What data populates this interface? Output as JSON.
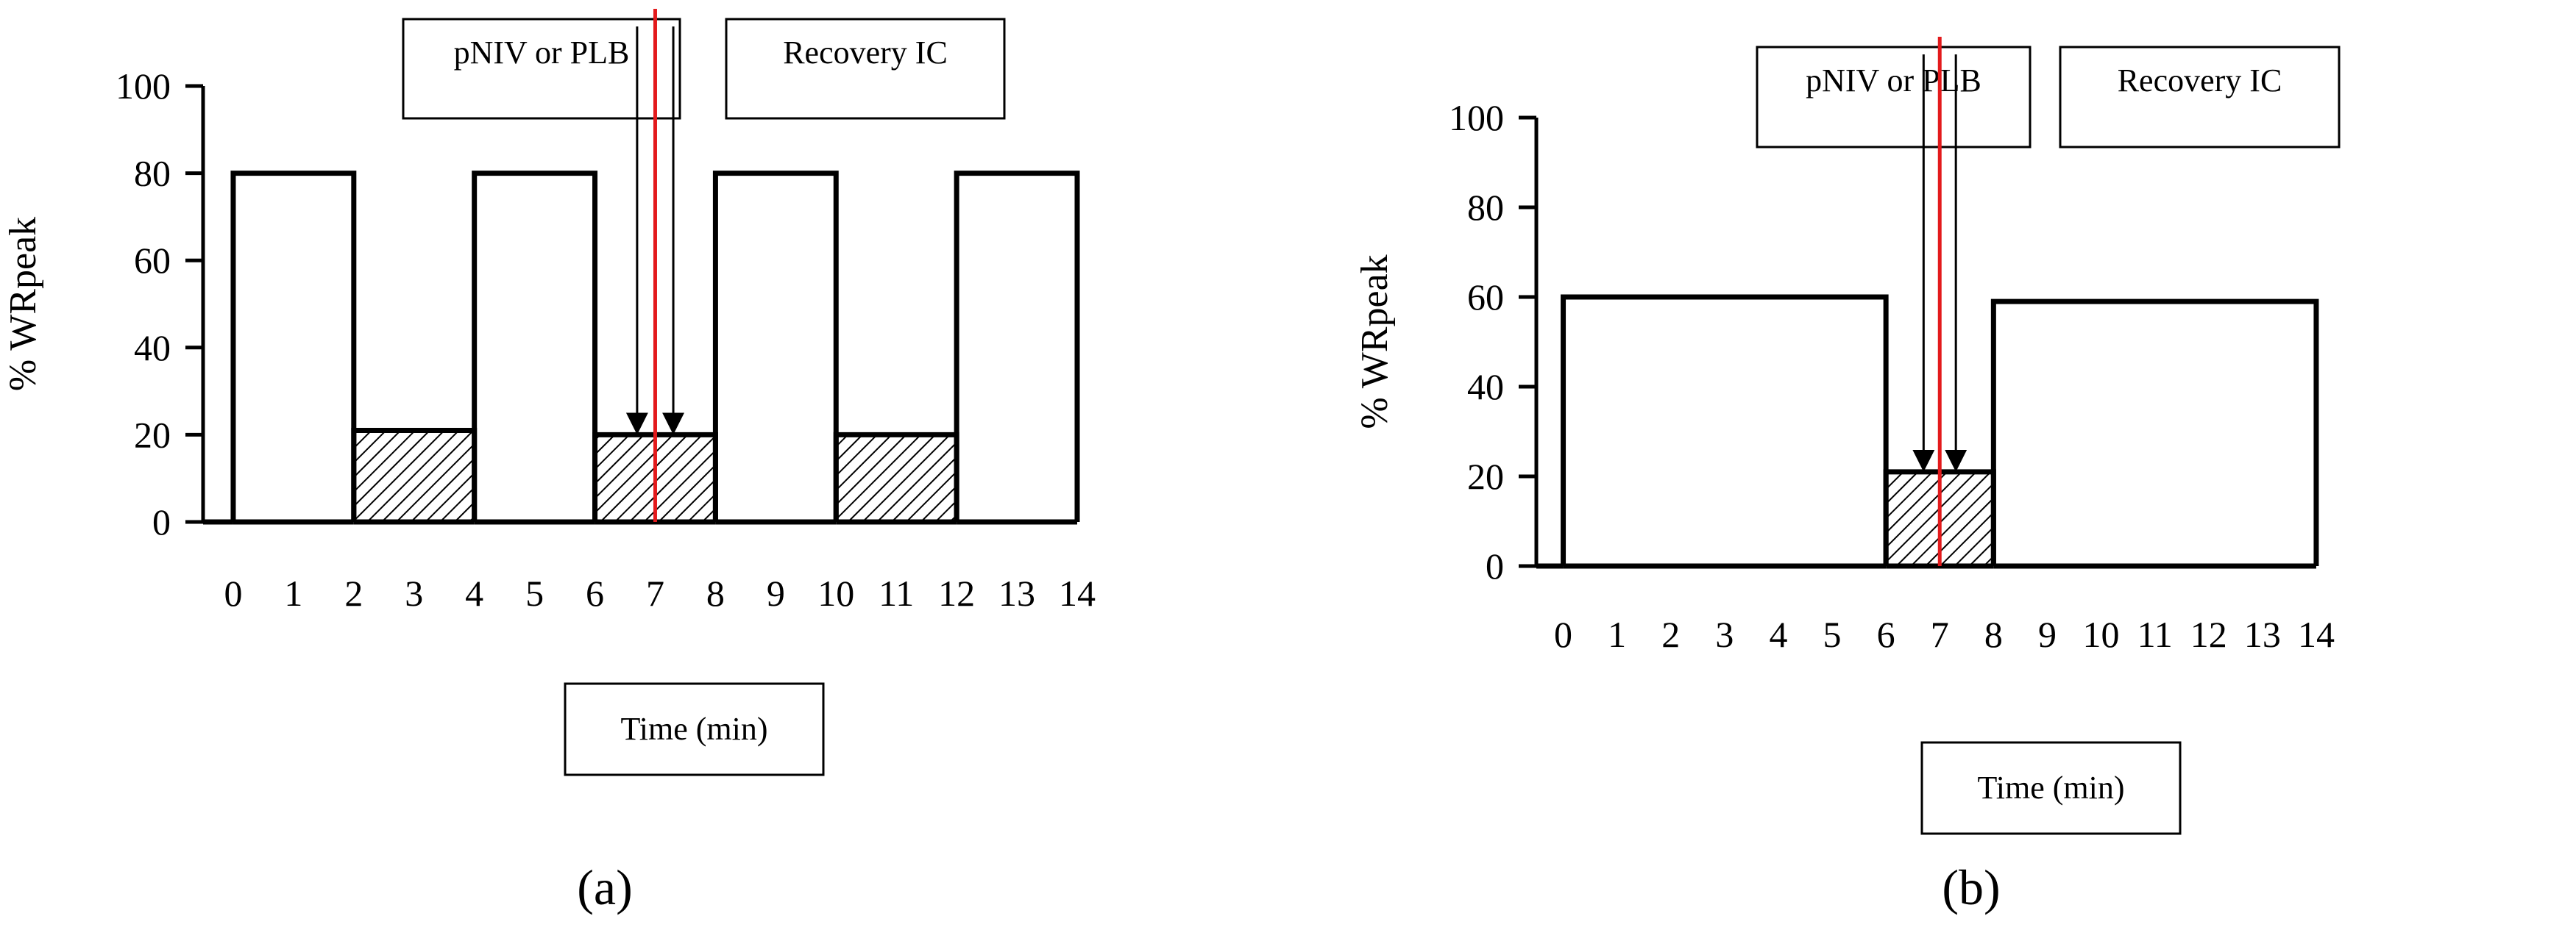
{
  "colors": {
    "profile": "#000000",
    "marker": "#e31a1c",
    "hatch_fill": "#ffffff",
    "hatch_line": "#000000"
  },
  "chart_data": [
    {
      "type": "line",
      "panel_label": "(a)",
      "ylabel": "% WRpeak",
      "xlabel": "Time (min)",
      "ylim": [
        0,
        100
      ],
      "yticks": [
        "0",
        "20",
        "40",
        "60",
        "80",
        "100"
      ],
      "xticks": [
        "0",
        "1",
        "2",
        "3",
        "4",
        "5",
        "6",
        "7",
        "8",
        "9",
        "10",
        "11",
        "12",
        "13",
        "14"
      ],
      "xlim": [
        -0.5,
        14.3
      ],
      "grid": false,
      "legend": "none",
      "bouts": [
        {
          "start": 0,
          "end": 2,
          "value": 80,
          "hatched": false
        },
        {
          "start": 2,
          "end": 4,
          "value": 21,
          "hatched": true
        },
        {
          "start": 4,
          "end": 6,
          "value": 80,
          "hatched": false
        },
        {
          "start": 6,
          "end": 8,
          "value": 20,
          "hatched": true
        },
        {
          "start": 8,
          "end": 10,
          "value": 80,
          "hatched": false
        },
        {
          "start": 10,
          "end": 12,
          "value": 20,
          "hatched": true
        },
        {
          "start": 12,
          "end": 14,
          "value": 80,
          "hatched": false
        }
      ],
      "marker_x": 7,
      "annotations": [
        {
          "text": "pNIV or PLB",
          "arrow_x": 6.7
        },
        {
          "text": "Recovery IC",
          "arrow_x": 7.3
        }
      ]
    },
    {
      "type": "line",
      "panel_label": "(b)",
      "ylabel": "% WRpeak",
      "xlabel": "Time (min)",
      "ylim": [
        0,
        100
      ],
      "yticks": [
        "0",
        "20",
        "40",
        "60",
        "80",
        "100"
      ],
      "xticks": [
        "0",
        "1",
        "2",
        "3",
        "4",
        "5",
        "6",
        "7",
        "8",
        "9",
        "10",
        "11",
        "12",
        "13",
        "14"
      ],
      "xlim": [
        -0.5,
        14.3
      ],
      "grid": false,
      "legend": "none",
      "bouts": [
        {
          "start": 0,
          "end": 6,
          "value": 60,
          "hatched": false
        },
        {
          "start": 6,
          "end": 8,
          "value": 21,
          "hatched": true
        },
        {
          "start": 8,
          "end": 14,
          "value": 59,
          "hatched": false
        }
      ],
      "marker_x": 7,
      "annotations": [
        {
          "text": "pNIV or PLB",
          "arrow_x": 6.7
        },
        {
          "text": "Recovery IC",
          "arrow_x": 7.3
        }
      ]
    }
  ]
}
